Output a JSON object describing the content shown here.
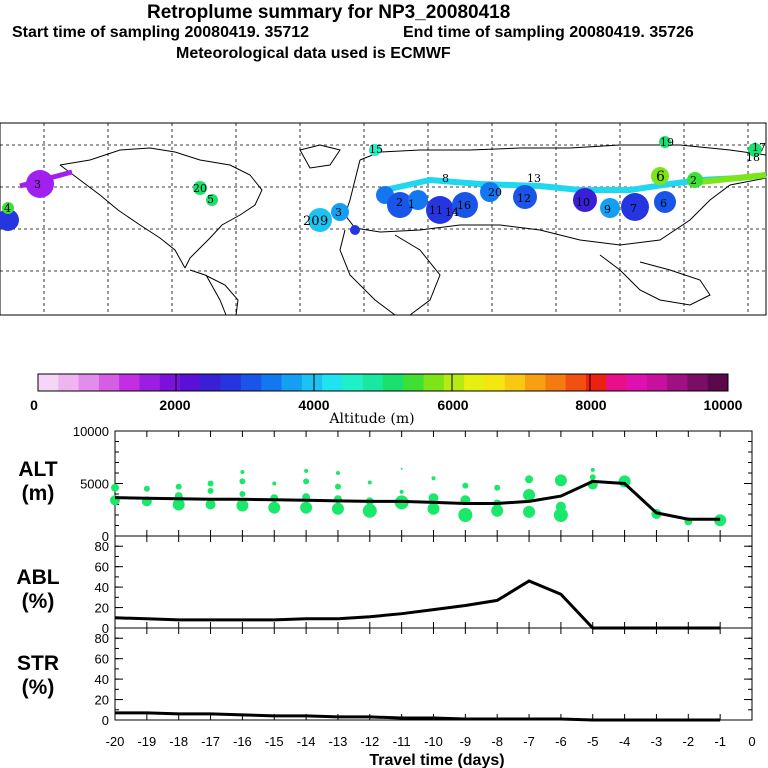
{
  "header": {
    "title": "Retroplume summary for NP3_20080418",
    "start_label": "Start time of sampling 20080419. 35712",
    "end_label": "End time of sampling 20080419. 35726",
    "met_label": "Meteorological data used is ECMWF"
  },
  "map": {
    "plume_labels": [
      "15",
      "19",
      "17",
      "18",
      "20",
      "5",
      "4",
      "3",
      "1",
      "8",
      "11",
      "20",
      "14",
      "16",
      "13",
      "12",
      "10",
      "9",
      "7",
      "6",
      "6",
      "2",
      "20",
      "9",
      "3",
      "2"
    ]
  },
  "colorbar": {
    "ticks": [
      "0",
      "2000",
      "4000",
      "6000",
      "8000",
      "10000"
    ],
    "label": "Altitude (m)",
    "colors": [
      "#f5d6f7",
      "#efb5f2",
      "#e48cec",
      "#d65de6",
      "#c12ee4",
      "#9a1fe0",
      "#7a12db",
      "#5a10d6",
      "#3a1fd6",
      "#2536e0",
      "#1a55ea",
      "#1277f0",
      "#14a0f2",
      "#1cc3f2",
      "#1fe3ee",
      "#1ef0c8",
      "#18e8a0",
      "#1ae070",
      "#3ee035",
      "#7ee41a",
      "#b7ea12",
      "#e8ee10",
      "#f5e510",
      "#f8c812",
      "#f8a012",
      "#f57a10",
      "#f25010",
      "#ee2010",
      "#e8108a",
      "#e010b0",
      "#c8109e",
      "#a01080",
      "#7a0e66",
      "#5a0a4c"
    ]
  },
  "chart_data": [
    {
      "type": "scatter",
      "name": "ALT",
      "ylabel": "ALT\n(m)",
      "ylabel_line1": "ALT",
      "ylabel_line2": "(m)",
      "ylim": [
        0,
        10000
      ],
      "yticks": [
        "10000",
        "5000",
        "0"
      ],
      "xlim": [
        -20,
        0
      ],
      "line_x": [
        -20,
        -19,
        -18,
        -17,
        -16,
        -15,
        -14,
        -13,
        -12,
        -11,
        -10,
        -9,
        -8,
        -7,
        -6,
        -5,
        -4,
        -3,
        -2,
        -1
      ],
      "line_y": [
        3650,
        3600,
        3550,
        3500,
        3500,
        3450,
        3400,
        3350,
        3300,
        3300,
        3200,
        3100,
        3100,
        3300,
        3800,
        5200,
        5000,
        2200,
        1600,
        1600
      ],
      "points": [
        [
          -20,
          3400,
          5
        ],
        [
          -20,
          4600,
          4
        ],
        [
          -19,
          3300,
          5
        ],
        [
          -19,
          4500,
          3
        ],
        [
          -18,
          3000,
          6
        ],
        [
          -18,
          3800,
          4
        ],
        [
          -18,
          4700,
          3
        ],
        [
          -17,
          3000,
          5
        ],
        [
          -17,
          4300,
          3
        ],
        [
          -17,
          5000,
          3
        ],
        [
          -16,
          2900,
          6
        ],
        [
          -16,
          4000,
          3
        ],
        [
          -16,
          5200,
          3
        ],
        [
          -16,
          6100,
          2
        ],
        [
          -15,
          2700,
          6
        ],
        [
          -15,
          3600,
          4
        ],
        [
          -15,
          5000,
          2
        ],
        [
          -14,
          2700,
          6
        ],
        [
          -14,
          3700,
          4
        ],
        [
          -14,
          5200,
          3
        ],
        [
          -14,
          6200,
          2
        ],
        [
          -13,
          2600,
          6
        ],
        [
          -13,
          3500,
          4
        ],
        [
          -13,
          4700,
          3
        ],
        [
          -13,
          6000,
          2
        ],
        [
          -12,
          2400,
          7
        ],
        [
          -12,
          3300,
          4
        ],
        [
          -12,
          5100,
          2
        ],
        [
          -11,
          3200,
          7
        ],
        [
          -11,
          4200,
          2
        ],
        [
          -11,
          6400,
          1
        ],
        [
          -10,
          2600,
          6
        ],
        [
          -10,
          3600,
          5
        ],
        [
          -10,
          5500,
          2
        ],
        [
          -9,
          2000,
          7
        ],
        [
          -9,
          3400,
          5
        ],
        [
          -9,
          4800,
          3
        ],
        [
          -8,
          2400,
          6
        ],
        [
          -8,
          3100,
          4
        ],
        [
          -8,
          4600,
          3
        ],
        [
          -7,
          2300,
          6
        ],
        [
          -7,
          3900,
          6
        ],
        [
          -7,
          5400,
          4
        ],
        [
          -6,
          2000,
          7
        ],
        [
          -6,
          2800,
          5
        ],
        [
          -6,
          5300,
          6
        ],
        [
          -5,
          4900,
          5
        ],
        [
          -5,
          5600,
          3
        ],
        [
          -5,
          6300,
          2
        ],
        [
          -4,
          5200,
          6
        ],
        [
          -3,
          2100,
          5
        ],
        [
          -2,
          1400,
          4
        ],
        [
          -1,
          1500,
          6
        ]
      ]
    },
    {
      "type": "line",
      "name": "ABL",
      "ylabel_line1": "ABL",
      "ylabel_line2": "(%)",
      "ylim": [
        0,
        90
      ],
      "yticks": [
        "80",
        "60",
        "40",
        "20",
        "0"
      ],
      "x": [
        -20,
        -19,
        -18,
        -17,
        -16,
        -15,
        -14,
        -13,
        -12,
        -11,
        -10,
        -9,
        -8,
        -7,
        -6,
        -5,
        -4,
        -3,
        -2,
        -1
      ],
      "y": [
        10,
        9,
        8,
        8,
        8,
        8,
        9,
        9,
        11,
        14,
        18,
        22,
        27,
        46,
        33,
        0,
        0,
        0,
        0,
        0
      ]
    },
    {
      "type": "line",
      "name": "STR",
      "ylabel_line1": "STR",
      "ylabel_line2": "(%)",
      "ylim": [
        0,
        90
      ],
      "yticks": [
        "80",
        "60",
        "40",
        "20",
        "0"
      ],
      "x": [
        -20,
        -19,
        -18,
        -17,
        -16,
        -15,
        -14,
        -13,
        -12,
        -11,
        -10,
        -9,
        -8,
        -7,
        -6,
        -5,
        -4,
        -3,
        -2,
        -1
      ],
      "y": [
        7,
        7,
        6,
        6,
        5,
        4,
        4,
        3,
        3,
        2,
        2,
        1,
        1,
        1,
        1,
        0,
        0,
        0,
        0,
        0
      ]
    }
  ],
  "xaxis": {
    "ticks": [
      "-20",
      "-19",
      "-18",
      "-17",
      "-16",
      "-15",
      "-14",
      "-13",
      "-12",
      "-11",
      "-10",
      "-9",
      "-8",
      "-7",
      "-6",
      "-5",
      "-4",
      "-3",
      "-2",
      "-1",
      "0"
    ],
    "label": "Travel time (days)"
  }
}
